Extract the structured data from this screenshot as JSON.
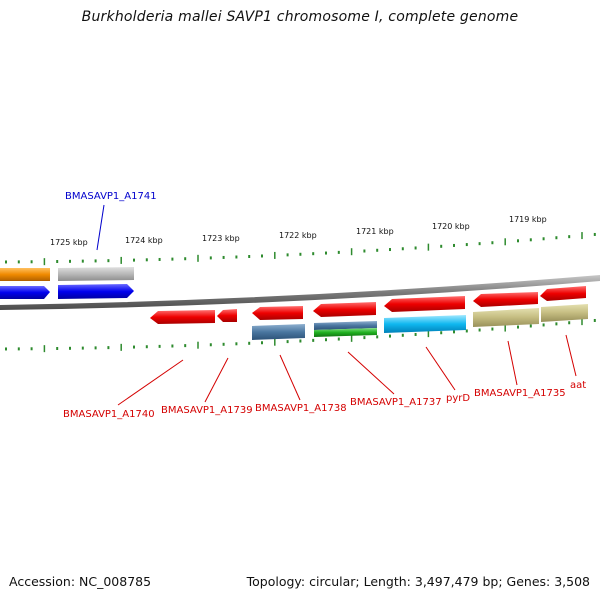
{
  "title": "Burkholderia mallei SAVP1 chromosome I, complete genome",
  "footer": {
    "accession": "Accession: NC_008785",
    "summary": "Topology: circular; Length: 3,497,479 bp; Genes: 3,508"
  },
  "colors": {
    "backbone": "#8a8a8a",
    "ticks": "#2e8b2e",
    "label_red": "#d40000",
    "label_blue": "#0000cc"
  },
  "scale": {
    "unit": "kbp",
    "ticks": [
      "1725 kbp",
      "1724 kbp",
      "1723 kbp",
      "1722 kbp",
      "1721 kbp",
      "1720 kbp",
      "1719 kbp"
    ]
  },
  "genes": [
    {
      "label": "BMASAVP1_A1741",
      "strand": "+",
      "color": "blue"
    },
    {
      "label": "BMASAVP1_A1740",
      "strand": "-",
      "color": "red"
    },
    {
      "label": "BMASAVP1_A1739",
      "strand": "-",
      "color": "red"
    },
    {
      "label": "BMASAVP1_A1738",
      "strand": "-",
      "color": "red"
    },
    {
      "label": "BMASAVP1_A1737",
      "strand": "-",
      "color": "red"
    },
    {
      "label": "pyrD",
      "strand": "-",
      "color": "red"
    },
    {
      "label": "BMASAVP1_A1735",
      "strand": "-",
      "color": "red"
    },
    {
      "label": "aat",
      "strand": "-",
      "color": "red"
    }
  ]
}
